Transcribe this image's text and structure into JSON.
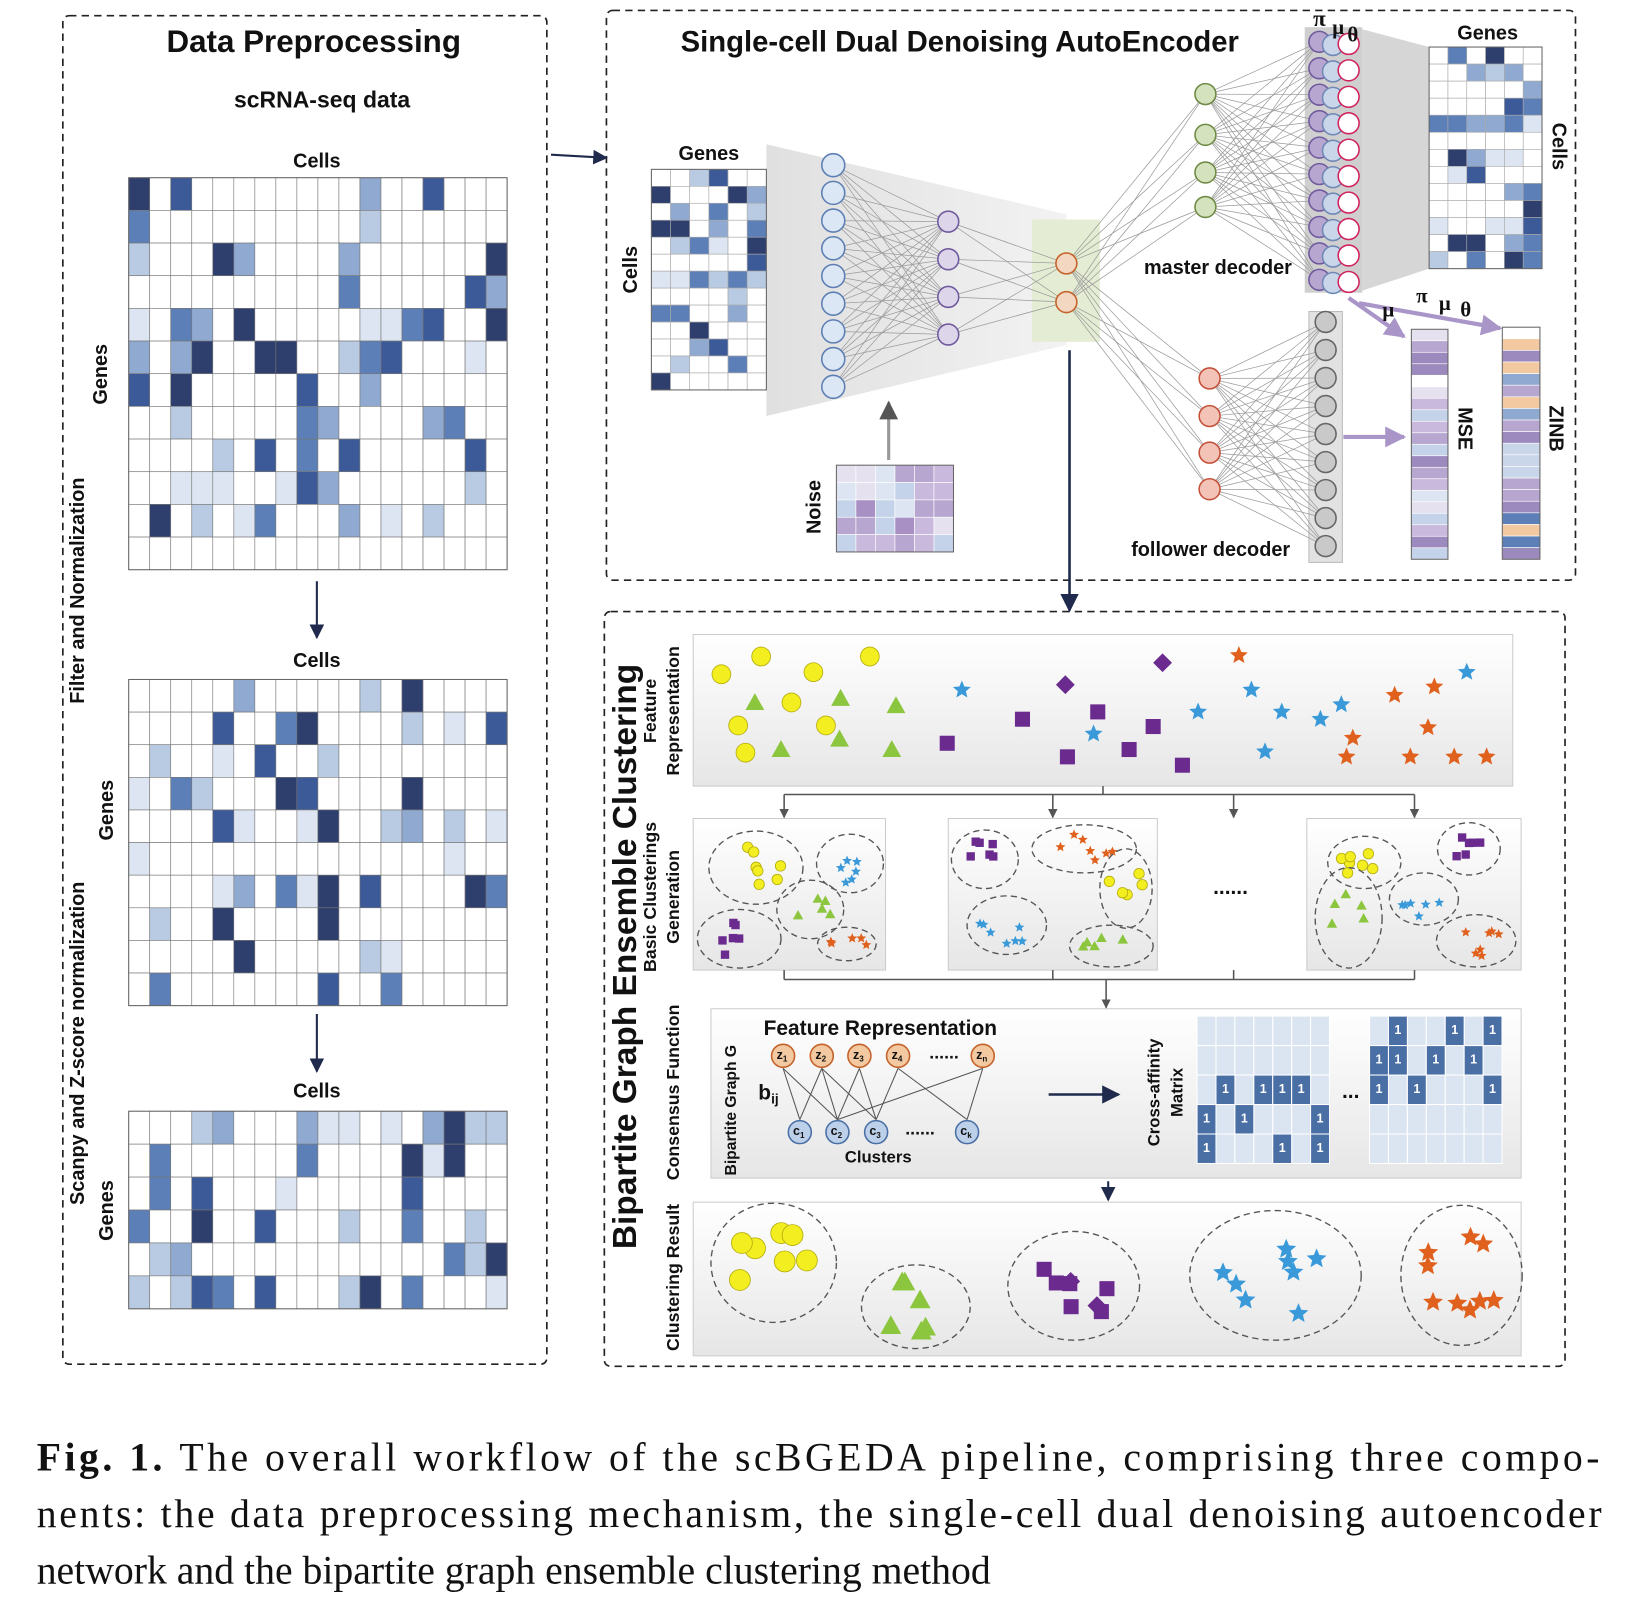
{
  "preprocessing": {
    "title": "Data Preprocessing",
    "subtitle": "scRNA-seq data",
    "matrices": [
      {
        "top": "Cells",
        "side": "Genes"
      },
      {
        "top": "Cells",
        "side": "Genes"
      },
      {
        "top": "Cells",
        "side": "Genes"
      }
    ],
    "steps": [
      "Filter and Normalization",
      "Scanpy and Z-score normalization"
    ]
  },
  "autoencoder": {
    "title": "Single-cell Dual Denoising AutoEncoder",
    "input": {
      "top": "Genes",
      "side": "Cells"
    },
    "noise": "Noise",
    "master_decoder": "master decoder",
    "follower_decoder": "follower decoder",
    "output_params": [
      "π",
      "μ",
      "θ"
    ],
    "output": {
      "top": "Genes",
      "side": "Cells"
    },
    "mse_arrow_label": "μ",
    "zinb_arrow_labels": [
      "π",
      "μ",
      "θ"
    ],
    "losses": [
      "MSE",
      "ZINB"
    ]
  },
  "clustering": {
    "title": "Bipartite Graph Ensemble Clustering",
    "stages": [
      [
        "Feature",
        "Representation"
      ],
      [
        "Basic Clusterings",
        "Generation"
      ],
      [
        "Consensus Function"
      ],
      [
        "Clustering  Result"
      ]
    ],
    "ellipsis": "......",
    "consensus": {
      "heading": "Feature Representation",
      "graph_label": "Bipartite Graph G",
      "edge_label": {
        "sym": "b",
        "sub": "ij"
      },
      "top_nodes": [
        {
          "sym": "z",
          "sub": "1"
        },
        {
          "sym": "z",
          "sub": "2"
        },
        {
          "sym": "z",
          "sub": "3"
        },
        {
          "sym": "z",
          "sub": "4"
        },
        {
          "sym": "z",
          "sub": "n"
        }
      ],
      "top_ellipsis": "......",
      "bottom_nodes": [
        {
          "sym": "c",
          "sub": "1"
        },
        {
          "sym": "c",
          "sub": "2"
        },
        {
          "sym": "c",
          "sub": "3"
        },
        {
          "sym": "c",
          "sub": "k"
        }
      ],
      "bottom_ellipsis": "......",
      "bottom_label": "Clusters",
      "matrix_label": [
        "Cross-affinity",
        "Matrix"
      ],
      "matrix_entry": "1",
      "matrix_ellipsis": "..."
    }
  },
  "caption": {
    "label": "Fig. 1.",
    "lines": [
      "The overall workflow of the scBGEDA pipeline, comprising three compo-",
      "nents: the data preprocessing mechanism, the single-cell dual denoising autoencoder",
      "network and the bipartite graph ensemble clustering method"
    ]
  }
}
